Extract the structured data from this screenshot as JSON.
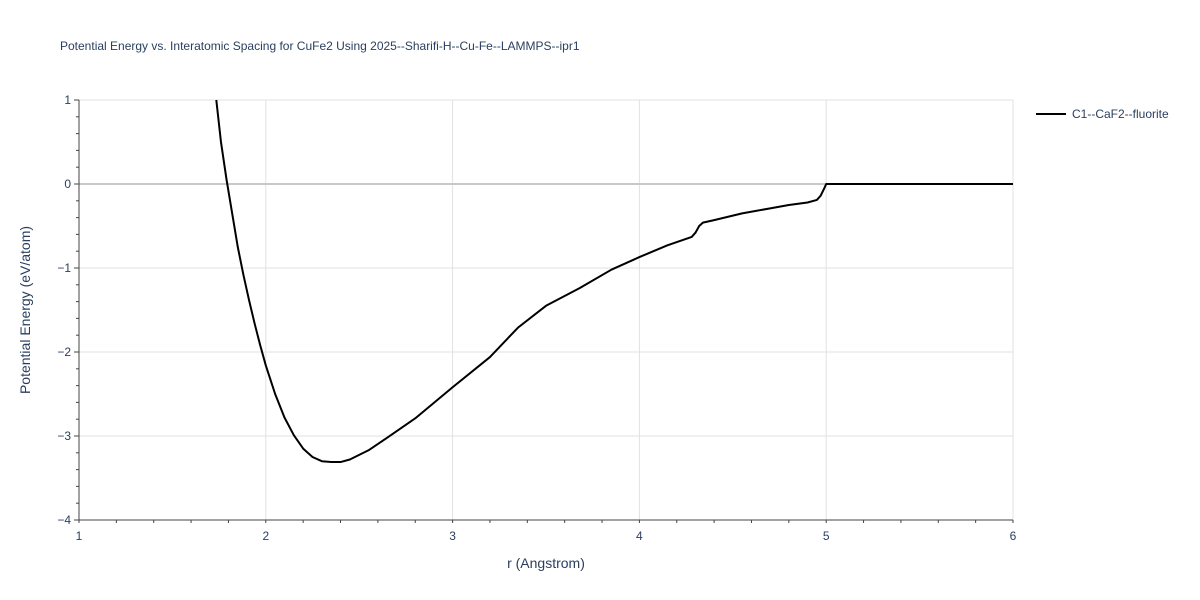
{
  "chart_data": {
    "type": "line",
    "title": "Potential Energy vs. Interatomic Spacing for CuFe2 Using 2025--Sharifi-H--Cu-Fe--LAMMPS--ipr1",
    "xlabel": "r (Angstrom)",
    "ylabel": "Potential Energy (eV/atom)",
    "xlim": [
      1,
      6
    ],
    "ylim": [
      -4,
      1
    ],
    "x_ticks": [
      "1",
      "2",
      "3",
      "4",
      "5",
      "6"
    ],
    "y_ticks": [
      "1",
      "0",
      "−1",
      "−2",
      "−3",
      "−4"
    ],
    "grid": true,
    "legend_position": "top-right",
    "series": [
      {
        "name": "C1--CaF2--fluorite",
        "color": "#000000",
        "x": [
          1.735,
          1.76,
          1.79,
          1.82,
          1.85,
          1.88,
          1.91,
          1.94,
          1.97,
          2.0,
          2.05,
          2.1,
          2.15,
          2.2,
          2.25,
          2.3,
          2.35,
          2.4,
          2.45,
          2.55,
          2.65,
          2.8,
          3.0,
          3.2,
          3.35,
          3.5,
          3.68,
          3.85,
          4.0,
          4.15,
          4.28,
          4.3,
          4.32,
          4.34,
          4.4,
          4.55,
          4.7,
          4.8,
          4.9,
          4.95,
          4.97,
          4.99,
          5.0,
          5.1,
          5.5,
          6.0
        ],
        "y": [
          1.0,
          0.5,
          0.05,
          -0.35,
          -0.75,
          -1.08,
          -1.38,
          -1.66,
          -1.92,
          -2.16,
          -2.5,
          -2.78,
          -2.99,
          -3.15,
          -3.25,
          -3.3,
          -3.31,
          -3.31,
          -3.28,
          -3.17,
          -3.02,
          -2.79,
          -2.42,
          -2.06,
          -1.71,
          -1.45,
          -1.24,
          -1.02,
          -0.87,
          -0.73,
          -0.63,
          -0.58,
          -0.5,
          -0.46,
          -0.43,
          -0.35,
          -0.29,
          -0.25,
          -0.22,
          -0.19,
          -0.14,
          -0.05,
          0.0,
          0.0,
          0.0,
          0.0
        ]
      }
    ]
  }
}
